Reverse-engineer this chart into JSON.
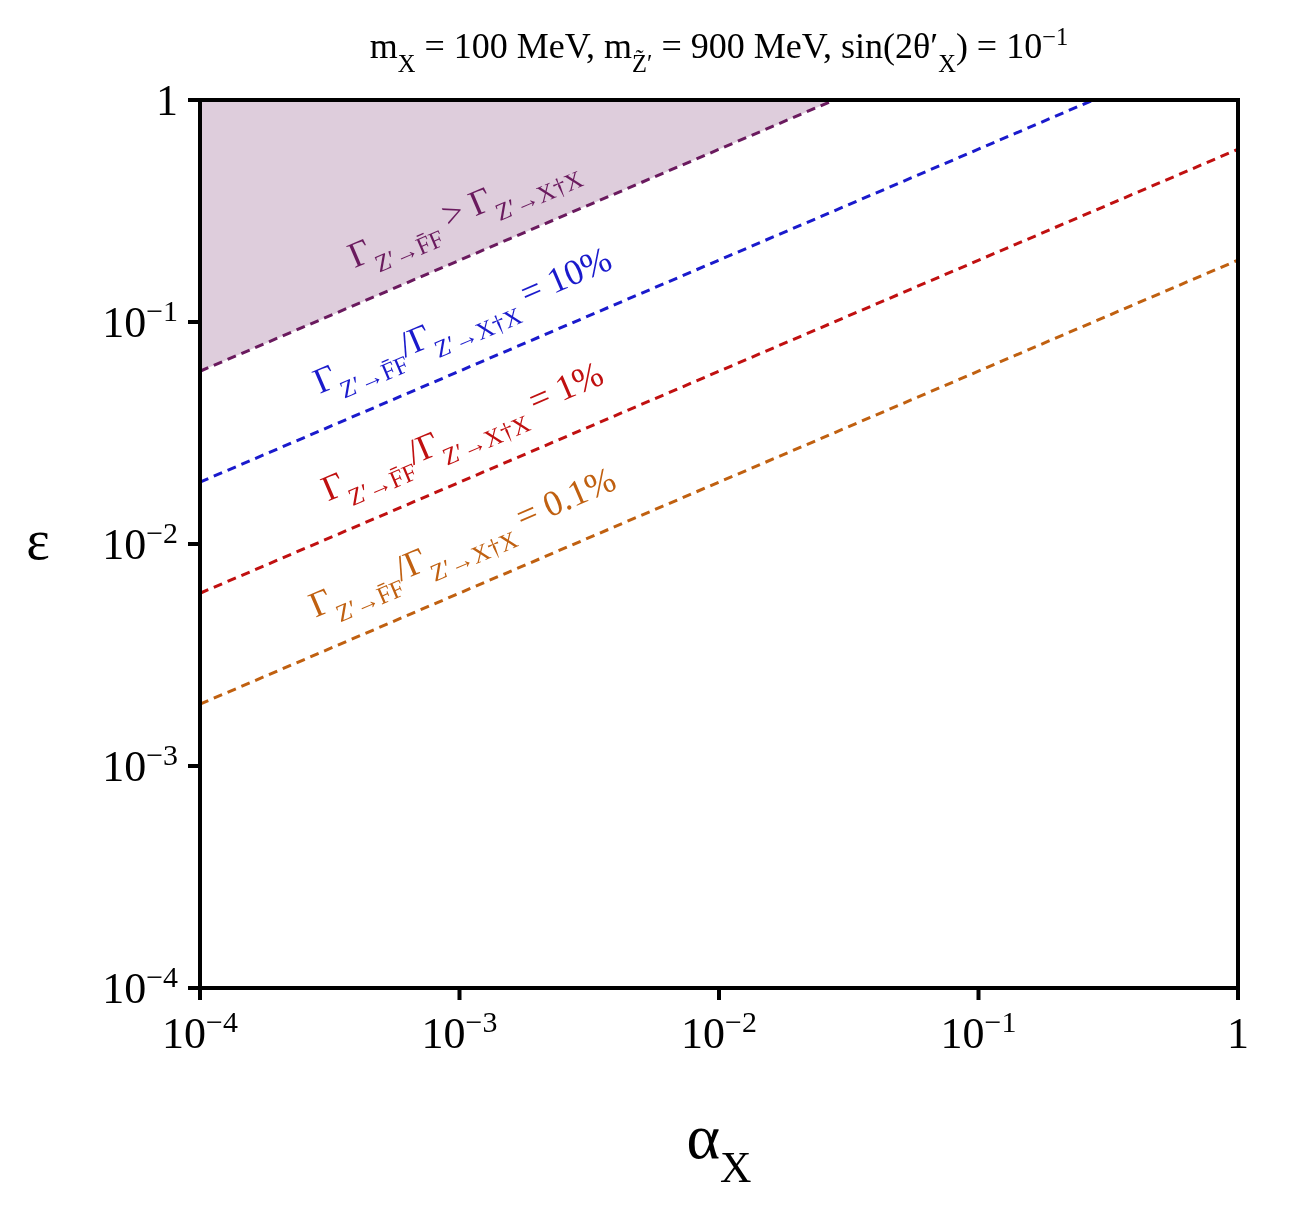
{
  "chart_data": {
    "type": "line",
    "title": "m$_{X}$ = 100 MeV,  m$_{Z̃′}$ = 900 MeV,  sin(2θ′$_{X}$) = 10$^{−1}$",
    "xlabel": "α$_{X}$",
    "ylabel": "ε",
    "log": "xy",
    "line_style": "dashed",
    "xlim": [
      0.0001,
      1
    ],
    "ylim": [
      0.0001,
      1
    ],
    "xticks": [
      {
        "value": 0.0001,
        "label": "10$^{−4}$"
      },
      {
        "value": 0.001,
        "label": "10$^{−3}$"
      },
      {
        "value": 0.01,
        "label": "10$^{−2}$"
      },
      {
        "value": 0.1,
        "label": "10$^{−1}$"
      },
      1
    ],
    "yticks": [
      {
        "value": 0.0001,
        "label": "10$^{−4}$"
      },
      {
        "value": 0.001,
        "label": "10$^{−3}$"
      },
      {
        "value": 0.01,
        "label": "10$^{−2}$"
      },
      {
        "value": 0.1,
        "label": "10$^{−1}$"
      },
      1
    ],
    "series": [
      {
        "type": "area",
        "name": "Γ$_{Z′→F̄F}$ > Γ$_{Z′→X†X}$",
        "color": "#6a1a5e",
        "x": [
          0.0001,
          0.0278
        ],
        "values": [
          0.06,
          1
        ]
      },
      {
        "name": "Γ$_{Z′→F̄F}$/Γ$_{Z′→X†X}$ = 10%",
        "color": "#1a1acc",
        "x": [
          0.0001,
          0.277
        ],
        "values": [
          0.019,
          1
        ]
      },
      {
        "name": "Γ$_{Z′→F̄F}$/Γ$_{Z′→X†X}$ = 1%",
        "color": "#c01010",
        "x": [
          0.0001,
          1
        ],
        "values": [
          0.006,
          0.6
        ]
      },
      {
        "name": "Γ$_{Z′→F̄F}$/Γ$_{Z′→X†X}$ = 0.1%",
        "color": "#c06010",
        "x": [
          0.0001,
          1
        ],
        "values": [
          0.0019,
          0.19
        ]
      }
    ]
  }
}
